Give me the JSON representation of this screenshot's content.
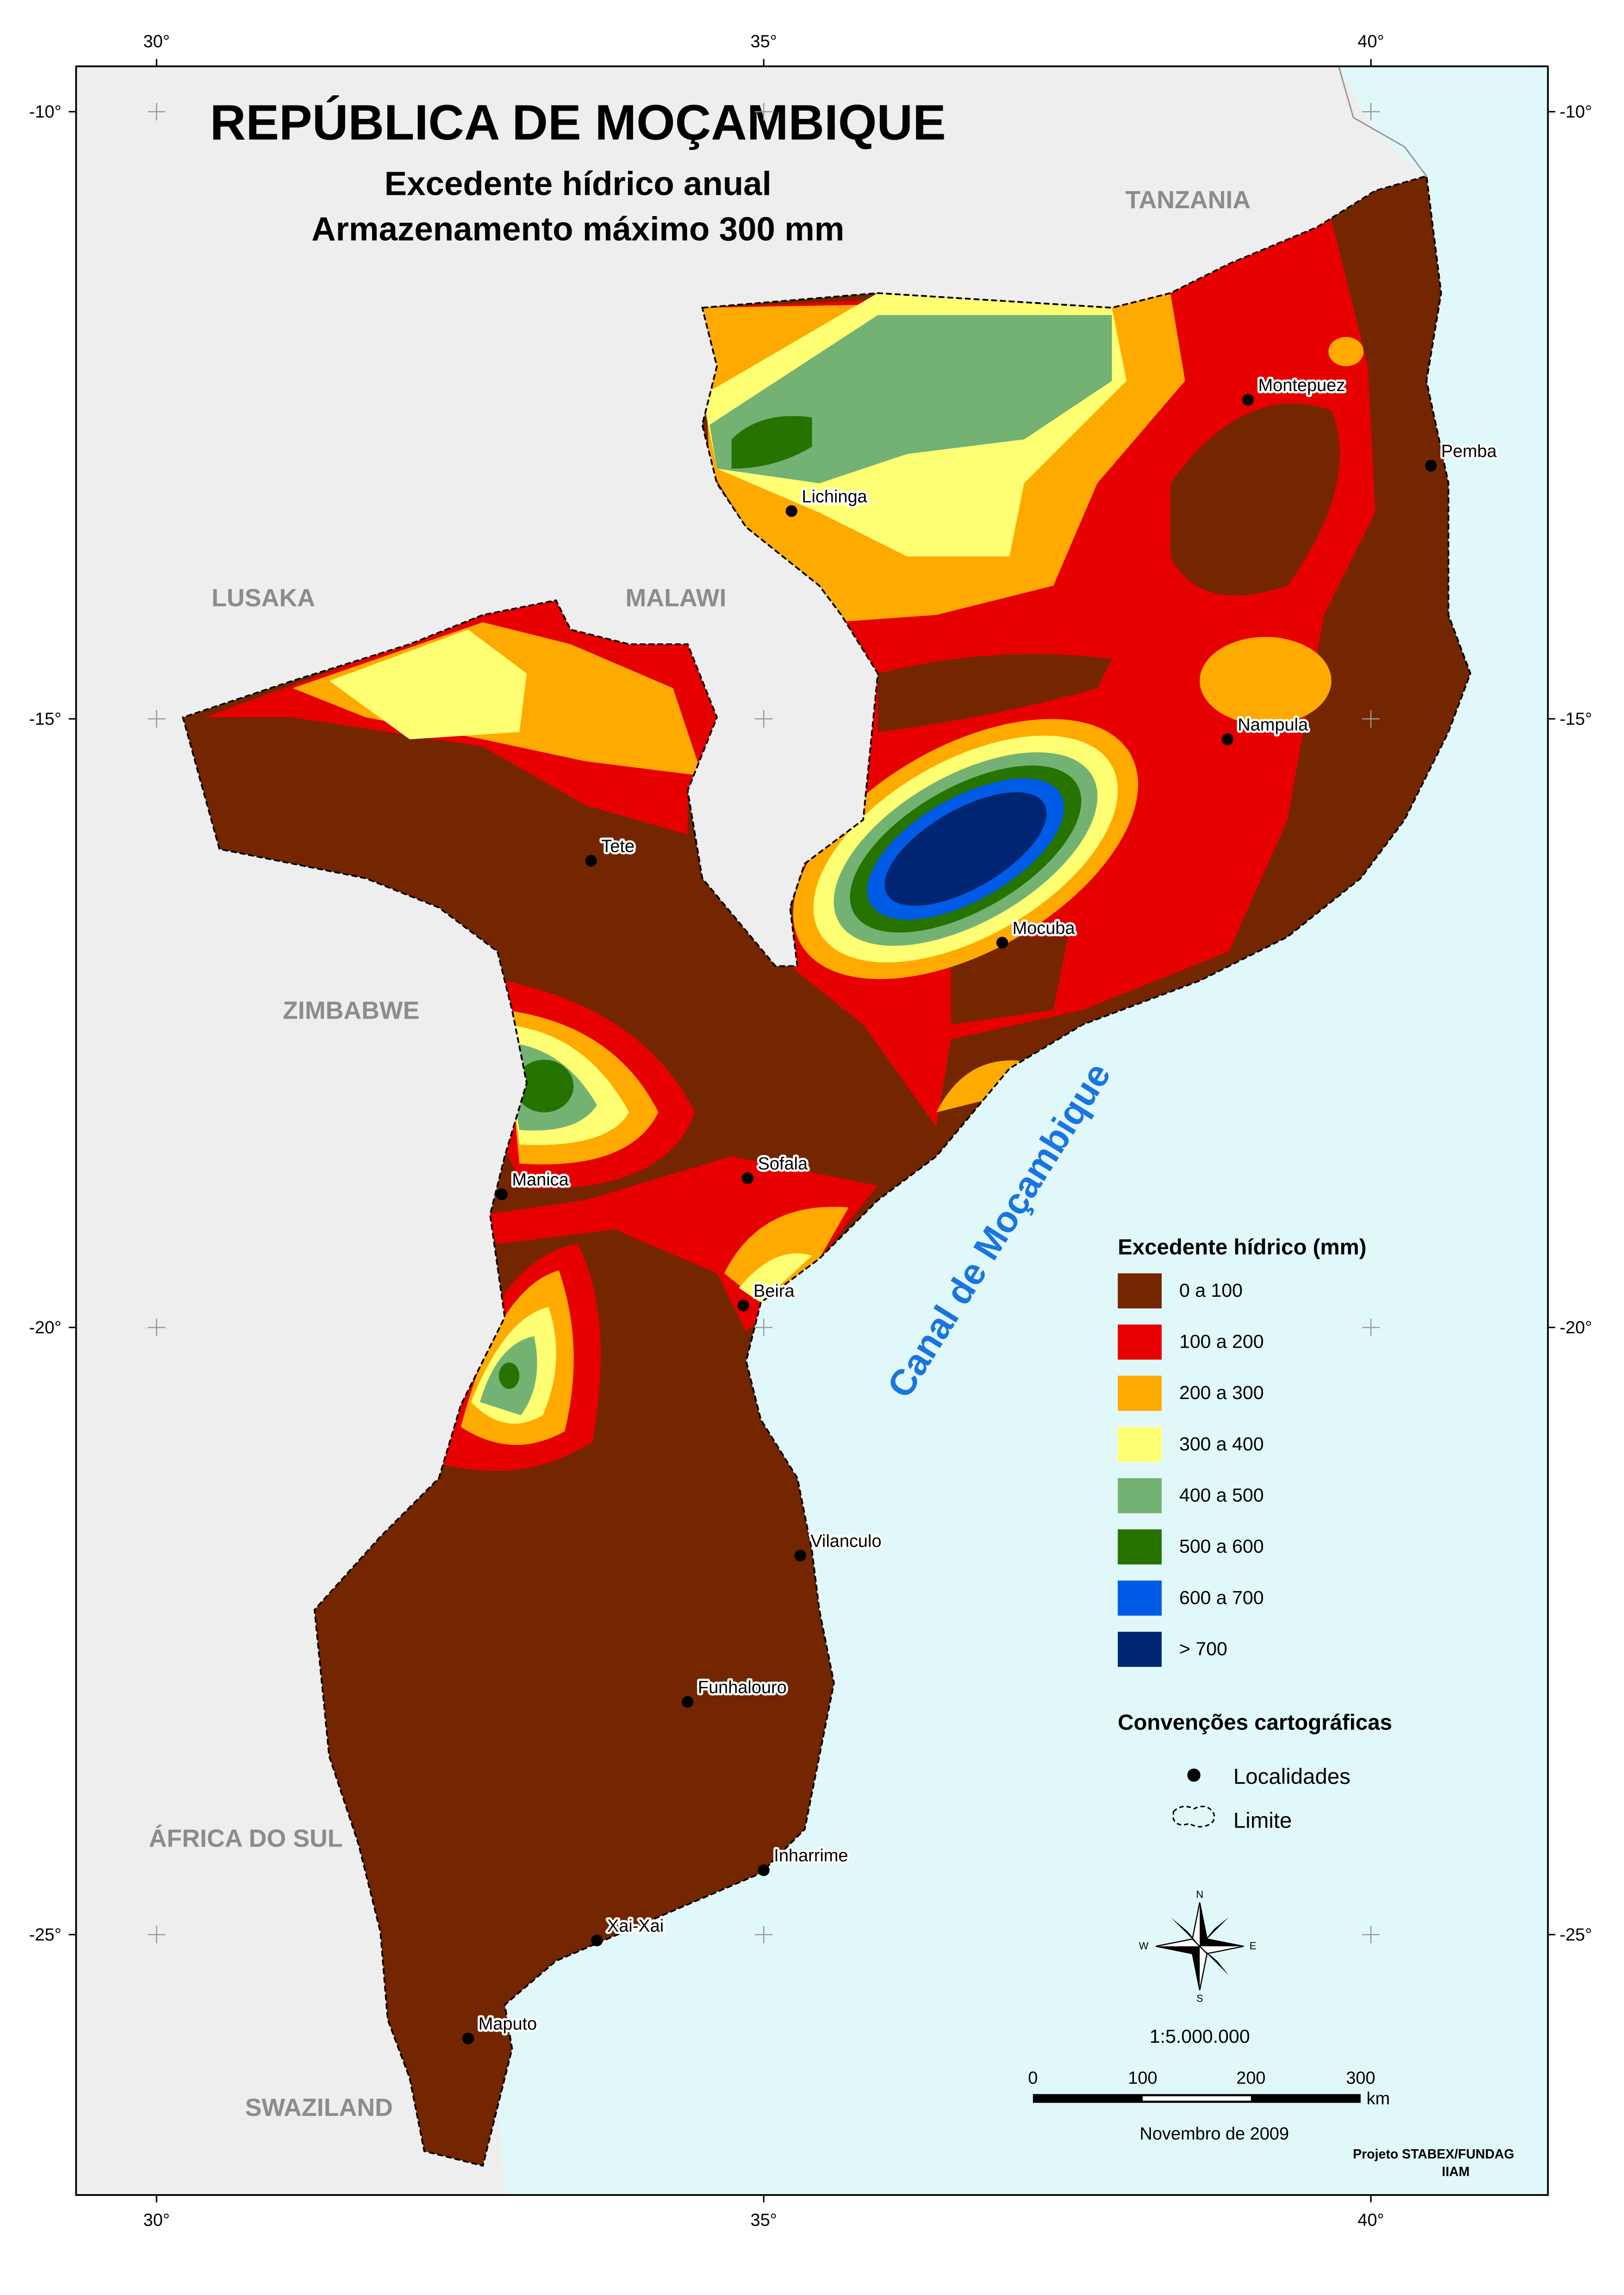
{
  "header": {
    "title": "REPÚBLICA DE MOÇAMBIQUE",
    "subtitle_1": "Excedente hídrico anual",
    "subtitle_2": "Armazenamento máximo 300 mm"
  },
  "grid": {
    "lon_labels": [
      "30°",
      "35°",
      "40°"
    ],
    "lat_labels": [
      "-10°",
      "-15°",
      "-20°",
      "-25°"
    ]
  },
  "regions": [
    "TANZANIA",
    "LUSAKA",
    "MALAWI",
    "ZIMBABWE",
    "ÁFRICA DO SUL",
    "SWAZILAND"
  ],
  "sea_label": "Canal de Moçambique",
  "localities": [
    "Montepuez",
    "Pemba",
    "Lichinga",
    "Nampula",
    "Tete",
    "Mocuba",
    "Manica",
    "Sofala",
    "Beira",
    "Vilanculo",
    "Funhalouro",
    "Inharrime",
    "Xai-Xai",
    "Maputo"
  ],
  "legend": {
    "title": "Excedente hídrico (mm)",
    "classes": [
      {
        "label": "0 a 100",
        "color": "#732600"
      },
      {
        "label": "100 a 200",
        "color": "#e60000"
      },
      {
        "label": "200 a 300",
        "color": "#ffaa00"
      },
      {
        "label": "300 a 400",
        "color": "#ffff73"
      },
      {
        "label": "400 a 500",
        "color": "#73b273"
      },
      {
        "label": "500 a 600",
        "color": "#267300"
      },
      {
        "label": "600 a 700",
        "color": "#005ce6"
      },
      {
        "label": "> 700",
        "color": "#002673"
      }
    ]
  },
  "conventions": {
    "title": "Convenções cartográficas",
    "items": [
      "Localidades",
      "Limite"
    ]
  },
  "compass": [
    "N",
    "E",
    "S",
    "W"
  ],
  "scale": {
    "ratio": "1:5.000.000",
    "ticks": [
      "0",
      "100",
      "200",
      "300"
    ],
    "unit": "km"
  },
  "date": "Novembro de 2009",
  "credits": [
    "Projeto STABEX/FUNDAG",
    "IIAM"
  ]
}
